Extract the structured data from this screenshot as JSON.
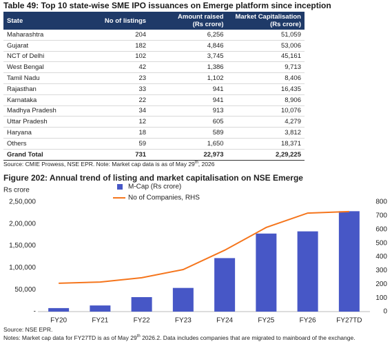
{
  "table": {
    "title": "Table 49: Top 10 state-wise SME IPO issuances on Emerge platform since inception",
    "columns": [
      "State",
      "No of listings",
      [
        "Amount raised",
        "(Rs crore)"
      ],
      [
        "Market Capitalisation",
        "(Rs crore)"
      ]
    ],
    "rows": [
      [
        "Maharashtra",
        "204",
        "6,256",
        "51,059"
      ],
      [
        "Gujarat",
        "182",
        "4,846",
        "53,006"
      ],
      [
        "NCT of Delhi",
        "102",
        "3,745",
        "45,161"
      ],
      [
        "West Bengal",
        "42",
        "1,386",
        "9,713"
      ],
      [
        "Tamil Nadu",
        "23",
        "1,102",
        "8,406"
      ],
      [
        "Rajasthan",
        "33",
        "941",
        "16,435"
      ],
      [
        "Karnataka",
        "22",
        "941",
        "8,906"
      ],
      [
        "Madhya Pradesh",
        "34",
        "913",
        "10,076"
      ],
      [
        "Uttar Pradesh",
        "12",
        "605",
        "4,279"
      ],
      [
        "Haryana",
        "18",
        "589",
        "3,812"
      ],
      [
        "Others",
        "59",
        "1,650",
        "18,371"
      ]
    ],
    "total": [
      "Grand Total",
      "731",
      "22,973",
      "2,29,225"
    ],
    "source": {
      "text": "Source: CMIE Prowess, NSE EPR. Note: Market cap data is as of May 29",
      "sup": "th",
      "tail": ", 2026"
    }
  },
  "chart_data": {
    "type": "bar_line",
    "title": "Figure 202: Annual trend of listing and market capitalisation on NSE Emerge",
    "y_label": "Rs crore",
    "categories": [
      "FY20",
      "FY21",
      "FY22",
      "FY23",
      "FY24",
      "FY25",
      "FY26",
      "FY27TD"
    ],
    "series": [
      {
        "name": "M-Cap (Rs crore)",
        "color": "#4757c6",
        "type": "bar",
        "values": [
          8000,
          14000,
          33000,
          54000,
          122000,
          178000,
          183000,
          229000
        ]
      },
      {
        "name": "No of Companies, RHS",
        "color": "#f5751c",
        "type": "line",
        "axis": "y2",
        "values": [
          207,
          216,
          247,
          307,
          448,
          614,
          719,
          730
        ]
      }
    ],
    "ylim": [
      0,
      250000
    ],
    "yticks": [
      {
        "value": 0,
        "label": "-"
      },
      {
        "value": 50000,
        "label": "50,000"
      },
      {
        "value": 100000,
        "label": "1,00,000"
      },
      {
        "value": 150000,
        "label": "1,50,000"
      },
      {
        "value": 200000,
        "label": "2,00,000"
      },
      {
        "value": 250000,
        "label": "2,50,000"
      }
    ],
    "y2lim": [
      0,
      800
    ],
    "y2ticks": [
      0,
      100,
      200,
      300,
      400,
      500,
      600,
      700,
      800
    ]
  },
  "notes": {
    "source": "Source: NSE EPR.",
    "text": "Notes: Market cap data for FY27TD is as of May 29",
    "sup": "th",
    "tail": " 2026.2. Data includes companies that are migrated to mainboard of the exchange."
  }
}
